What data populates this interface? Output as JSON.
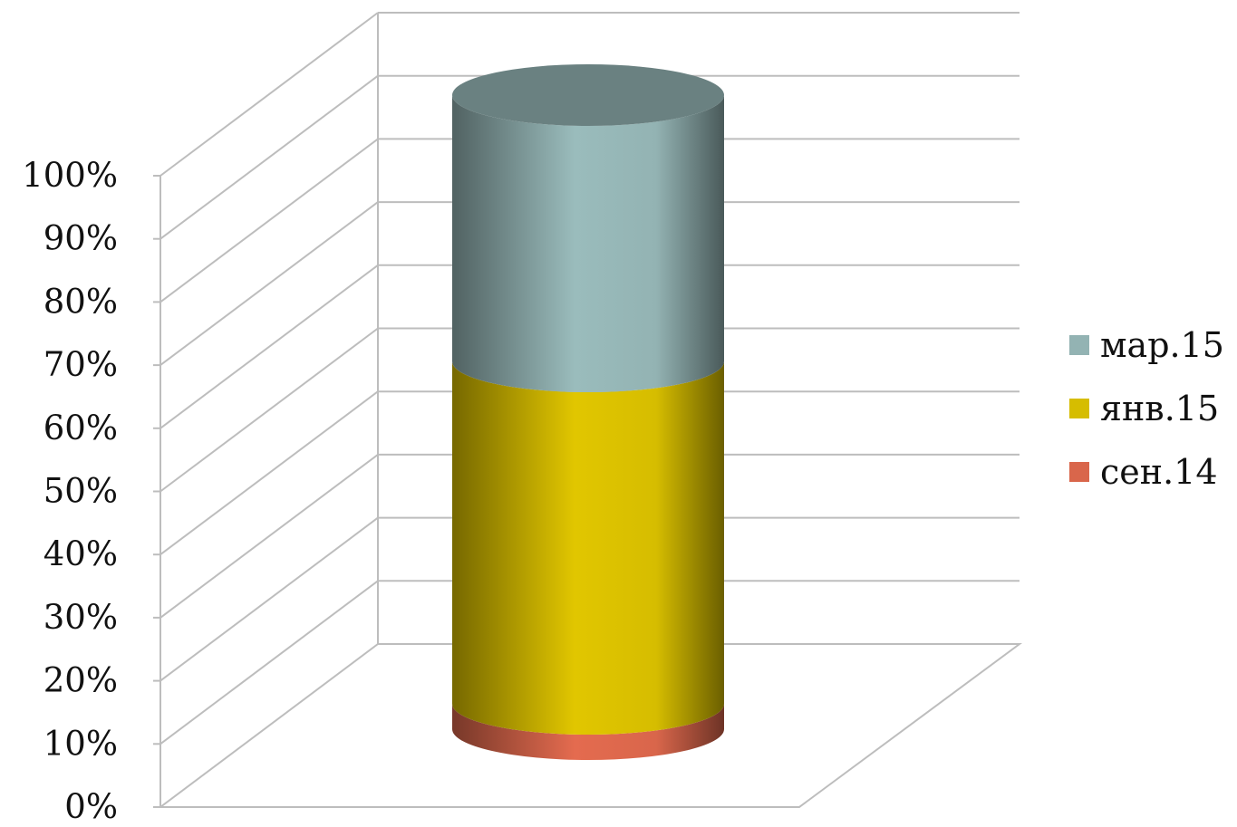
{
  "chart_data": {
    "type": "bar",
    "style": "3d-cylinder-stacked-100",
    "categories": [
      ""
    ],
    "series": [
      {
        "name": "сен.14",
        "values": [
          4
        ],
        "color": "#d9664b"
      },
      {
        "name": "янв.15",
        "values": [
          54
        ],
        "color": "#d6bd00"
      },
      {
        "name": "мар.15",
        "values": [
          42
        ],
        "color": "#93b3b3"
      }
    ],
    "ylim": [
      0,
      100
    ],
    "y_ticks": [
      "0%",
      "10%",
      "20%",
      "30%",
      "40%",
      "50%",
      "60%",
      "70%",
      "80%",
      "90%",
      "100%"
    ],
    "grid": true,
    "legend_position": "right",
    "legend_order": [
      "мар.15",
      "янв.15",
      "сен.14"
    ]
  }
}
